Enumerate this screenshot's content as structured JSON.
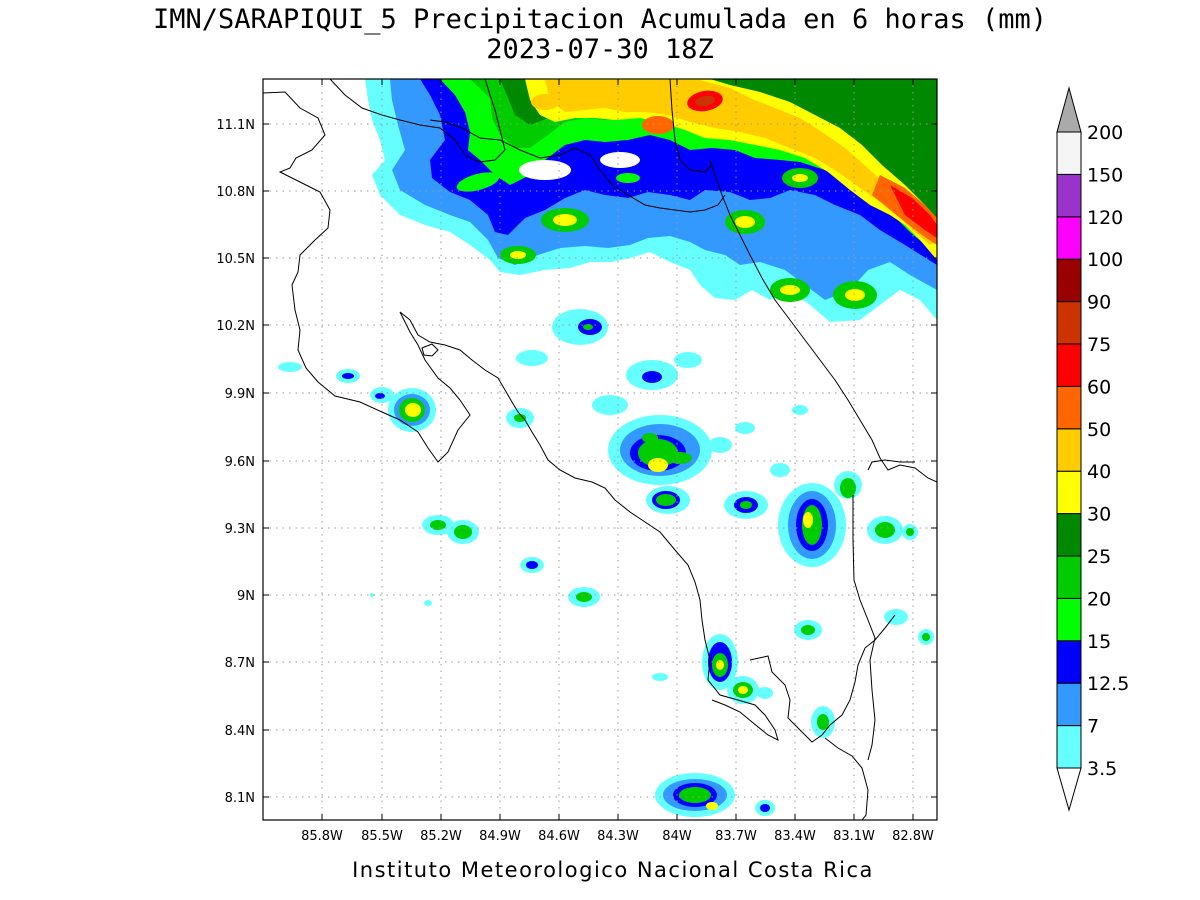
{
  "title": {
    "line1": "IMN/SARAPIQUI_5 Precipitacion Acumulada en 6 horas (mm)",
    "line2": "2023-07-30 18Z"
  },
  "footer": "Instituto Meteorologico Nacional Costa Rica",
  "map": {
    "lon_range": [
      -86.05,
      -82.55
    ],
    "lat_range": [
      8.0,
      11.3
    ],
    "x_ticks": [
      "85.8W",
      "85.5W",
      "85.2W",
      "84.9W",
      "84.6W",
      "84.3W",
      "84W",
      "83.7W",
      "83.4W",
      "83.1W",
      "82.8W"
    ],
    "y_ticks": [
      "11.1N",
      "10.8N",
      "10.5N",
      "10.2N",
      "9.9N",
      "9.6N",
      "9.3N",
      "9N",
      "8.7N",
      "8.4N",
      "8.1N"
    ],
    "grid": true,
    "colors": {
      "c1": "#66ffff",
      "c2": "#3399ff",
      "c3": "#0000ff",
      "c4": "#00ff00",
      "c5": "#00cc00",
      "c6": "#008800",
      "c7": "#ffff00",
      "c8": "#ffcc00",
      "c9": "#ff6600",
      "c10": "#ff0000",
      "c11": "#cc3300",
      "c12": "#990000",
      "c13": "#ff00ff",
      "c14": "#9933cc",
      "c15": "#f5f5f5",
      "top_arrow": "#aaaaaa"
    }
  },
  "colorbar": {
    "labels": [
      "3.5",
      "7",
      "12.5",
      "15",
      "20",
      "25",
      "30",
      "40",
      "50",
      "60",
      "75",
      "90",
      "100",
      "120",
      "150",
      "200"
    ],
    "colors": [
      "#66ffff",
      "#3399ff",
      "#0000ff",
      "#00ff00",
      "#00cc00",
      "#008800",
      "#ffff00",
      "#ffcc00",
      "#ff6600",
      "#ff0000",
      "#cc3300",
      "#990000",
      "#ff00ff",
      "#9933cc",
      "#f5f5f5"
    ]
  }
}
